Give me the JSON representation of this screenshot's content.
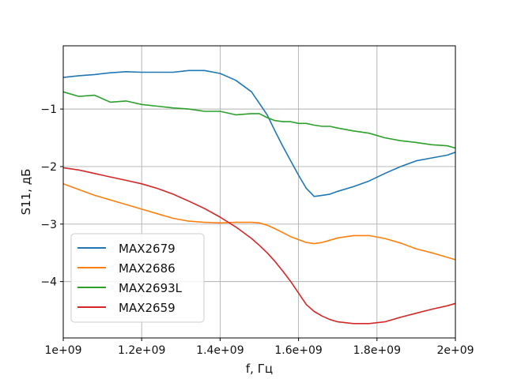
{
  "chart_data": {
    "type": "line",
    "title": "",
    "xlabel": "f, Гц",
    "ylabel": "S11, дБ",
    "xlim": [
      1000000000,
      2000000000
    ],
    "ylim": [
      -4.98,
      0.1
    ],
    "grid": true,
    "legend_position": "lower-left",
    "x_ticks": [
      {
        "value": 1000000000,
        "label": "1e+09"
      },
      {
        "value": 1200000000,
        "label": "1.2e+09"
      },
      {
        "value": 1400000000,
        "label": "1.4e+09"
      },
      {
        "value": 1600000000,
        "label": "1.6e+09"
      },
      {
        "value": 1800000000,
        "label": "1.8e+09"
      },
      {
        "value": 2000000000,
        "label": "2e+09"
      }
    ],
    "y_ticks": [
      {
        "value": -1,
        "label": "−1"
      },
      {
        "value": -2,
        "label": "−2"
      },
      {
        "value": -3,
        "label": "−3"
      },
      {
        "value": -4,
        "label": "−4"
      }
    ],
    "x": [
      1000000000,
      1040000000,
      1080000000,
      1120000000,
      1160000000,
      1200000000,
      1240000000,
      1280000000,
      1320000000,
      1360000000,
      1400000000,
      1440000000,
      1480000000,
      1500000000,
      1520000000,
      1540000000,
      1560000000,
      1580000000,
      1600000000,
      1620000000,
      1640000000,
      1660000000,
      1680000000,
      1700000000,
      1740000000,
      1780000000,
      1820000000,
      1860000000,
      1900000000,
      1940000000,
      1980000000,
      2000000000
    ],
    "series": [
      {
        "name": "MAX2679",
        "color": "#1f77b4",
        "values": [
          -0.45,
          -0.42,
          -0.4,
          -0.37,
          -0.35,
          -0.36,
          -0.36,
          -0.36,
          -0.33,
          -0.33,
          -0.38,
          -0.5,
          -0.7,
          -0.9,
          -1.1,
          -1.38,
          -1.65,
          -1.9,
          -2.15,
          -2.38,
          -2.52,
          -2.5,
          -2.48,
          -2.43,
          -2.35,
          -2.25,
          -2.12,
          -2.0,
          -1.9,
          -1.85,
          -1.8,
          -1.75
        ]
      },
      {
        "name": "MAX2686",
        "color": "#ff7f0e",
        "values": [
          -2.3,
          -2.4,
          -2.5,
          -2.58,
          -2.66,
          -2.74,
          -2.82,
          -2.9,
          -2.95,
          -2.97,
          -2.98,
          -2.97,
          -2.97,
          -2.98,
          -3.02,
          -3.08,
          -3.15,
          -3.22,
          -3.27,
          -3.32,
          -3.34,
          -3.32,
          -3.28,
          -3.24,
          -3.2,
          -3.2,
          -3.25,
          -3.33,
          -3.43,
          -3.5,
          -3.58,
          -3.62
        ]
      },
      {
        "name": "MAX2693L",
        "color": "#2ca02c",
        "values": [
          -0.7,
          -0.78,
          -0.76,
          -0.88,
          -0.86,
          -0.92,
          -0.95,
          -0.98,
          -1.0,
          -1.04,
          -1.04,
          -1.1,
          -1.08,
          -1.08,
          -1.15,
          -1.2,
          -1.22,
          -1.22,
          -1.25,
          -1.25,
          -1.28,
          -1.3,
          -1.3,
          -1.33,
          -1.38,
          -1.42,
          -1.5,
          -1.55,
          -1.58,
          -1.62,
          -1.64,
          -1.68
        ]
      },
      {
        "name": "MAX2659",
        "color": "#d62728",
        "values": [
          -2.02,
          -2.06,
          -2.12,
          -2.18,
          -2.24,
          -2.3,
          -2.38,
          -2.48,
          -2.6,
          -2.73,
          -2.88,
          -3.05,
          -3.25,
          -3.37,
          -3.5,
          -3.65,
          -3.82,
          -4.0,
          -4.2,
          -4.4,
          -4.52,
          -4.6,
          -4.66,
          -4.7,
          -4.73,
          -4.73,
          -4.7,
          -4.62,
          -4.55,
          -4.48,
          -4.42,
          -4.38
        ]
      }
    ]
  }
}
